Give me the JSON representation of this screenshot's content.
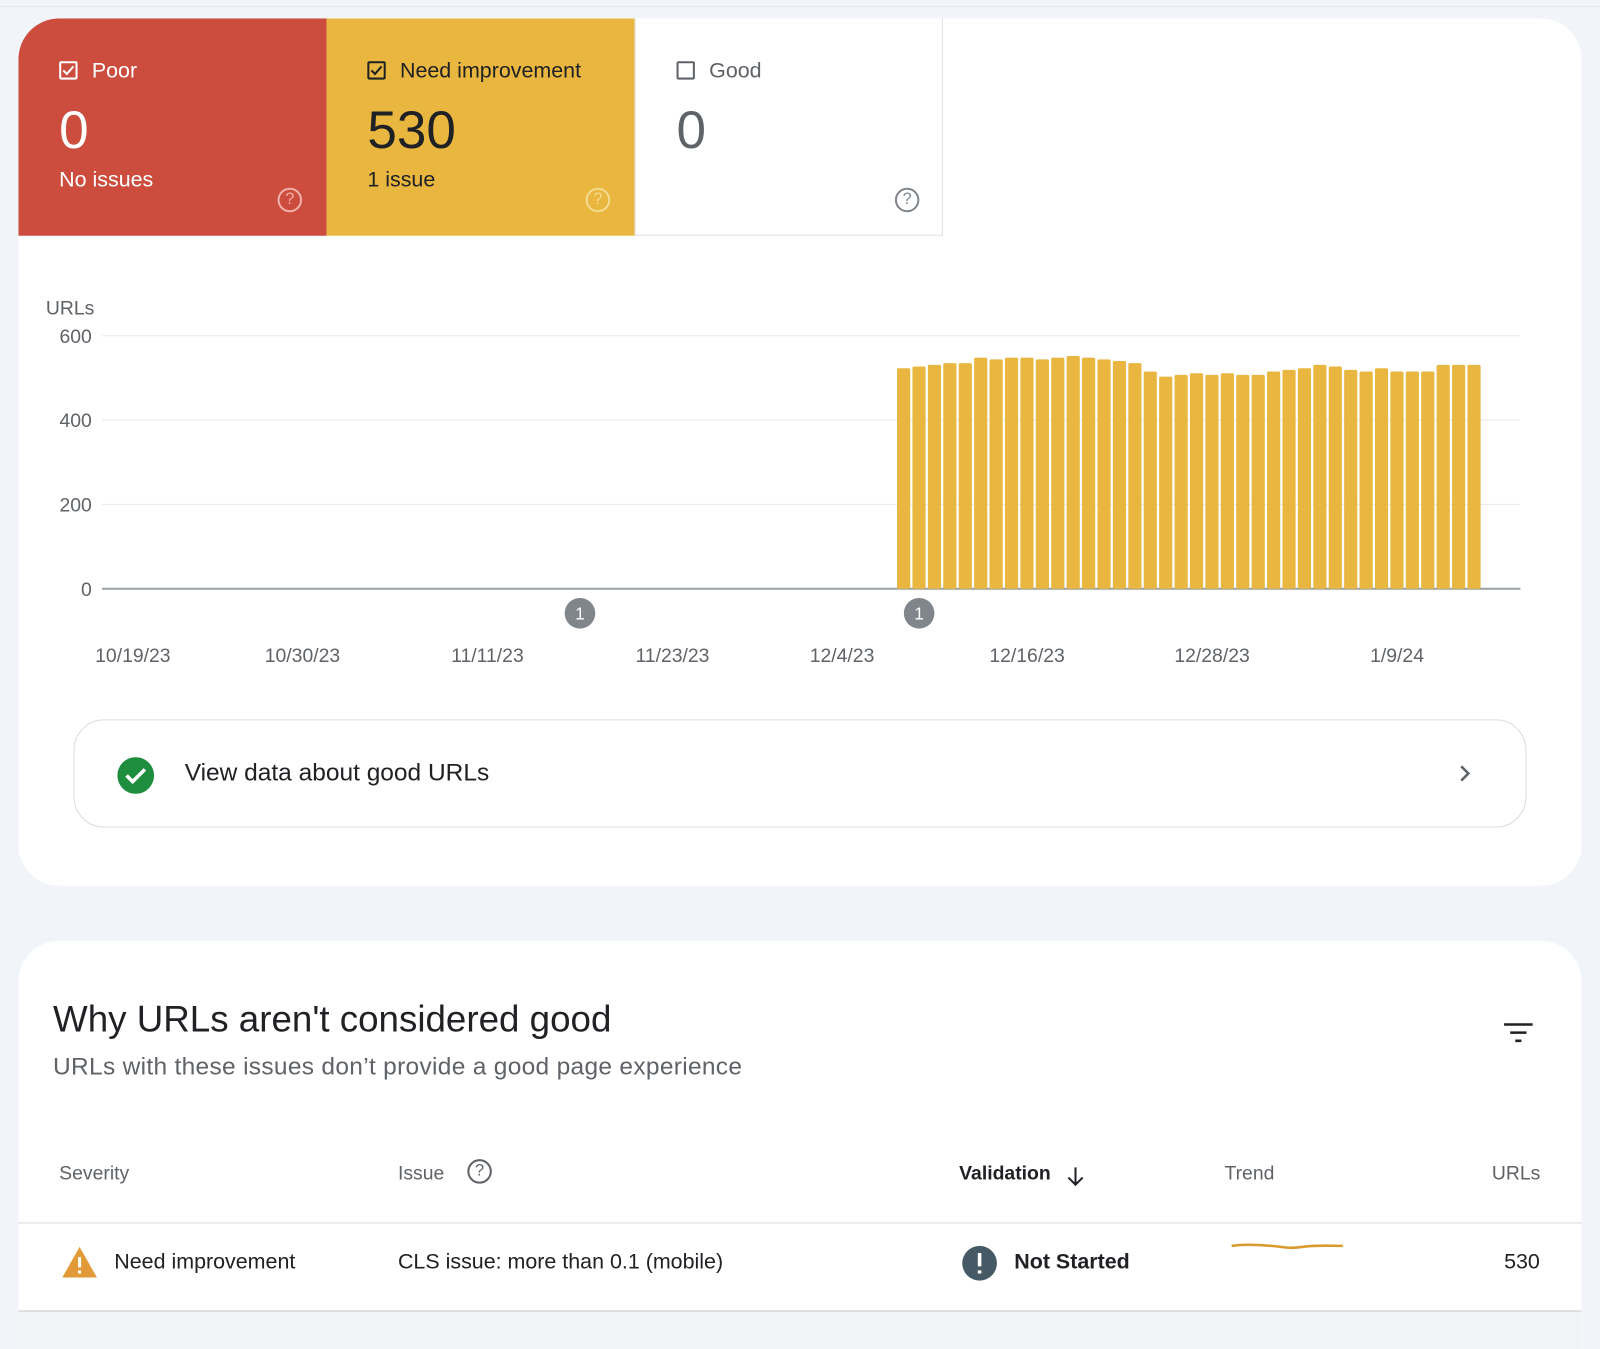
{
  "tiles": {
    "poor": {
      "label": "Poor",
      "count": "0",
      "subtitle": "No issues",
      "checked": true,
      "color": "#cc4d3e"
    },
    "need_improvement": {
      "label": "Need improvement",
      "count": "530",
      "subtitle": "1 issue",
      "checked": true,
      "color": "#e9b73f"
    },
    "good": {
      "label": "Good",
      "count": "0",
      "checked": false
    },
    "help_glyph": "?"
  },
  "chart_data": {
    "type": "bar",
    "ylabel": "URLs",
    "ylim": [
      0,
      600
    ],
    "yticks": [
      "600",
      "400",
      "200",
      "0"
    ],
    "grid": true,
    "xlim": [
      "10/17/23",
      "1/17/24"
    ],
    "xticks": [
      "10/19/23",
      "10/30/23",
      "11/11/23",
      "11/23/23",
      "12/4/23",
      "12/16/23",
      "12/28/23",
      "1/9/24"
    ],
    "bar_color": "#e9b73f",
    "bar_start_date": "12/8/23",
    "values": [
      523,
      527,
      531,
      535,
      535,
      548,
      544,
      548,
      548,
      544,
      548,
      552,
      548,
      544,
      540,
      535,
      515,
      503,
      507,
      511,
      507,
      511,
      507,
      507,
      515,
      519,
      523,
      531,
      527,
      519,
      515,
      523,
      515,
      515,
      515,
      531,
      531,
      531
    ],
    "annotations": [
      {
        "date": "11/17/23",
        "label": "1"
      },
      {
        "date": "12/9/23",
        "label": "1"
      }
    ]
  },
  "good_link": {
    "label": "View data about good URLs"
  },
  "issues": {
    "title": "Why URLs aren't considered good",
    "subtitle": "URLs with these issues don’t provide a good page experience",
    "columns": {
      "severity": "Severity",
      "issue": "Issue",
      "validation": "Validation",
      "trend": "Trend",
      "urls": "URLs"
    },
    "rows": [
      {
        "severity": "Need improvement",
        "issue": "CLS issue: more than 0.1 (mobile)",
        "validation": "Not Started",
        "urls": "530",
        "trend_color": "#d89a2d"
      }
    ]
  }
}
